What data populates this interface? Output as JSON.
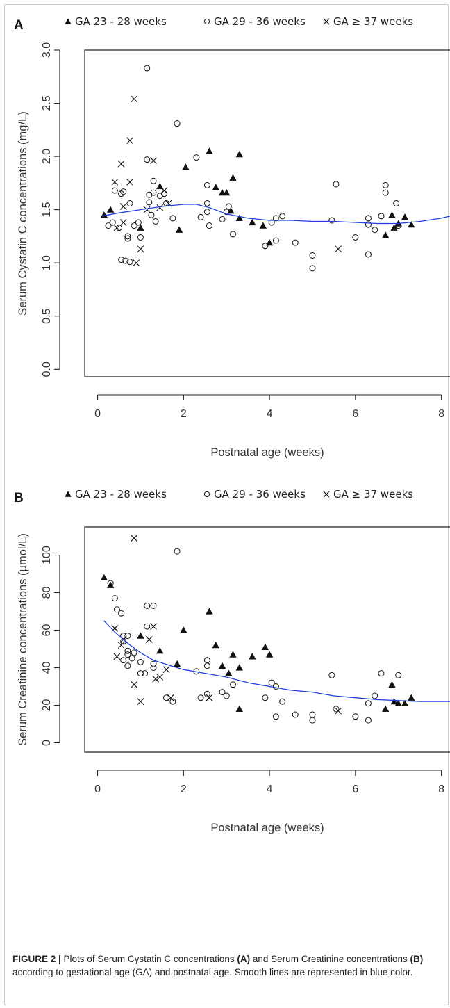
{
  "figure": {
    "caption_label": "FIGURE 2 |",
    "caption_text_1": " Plots of Serum Cystatin C concentrations ",
    "caption_bold_a": "(A)",
    "caption_text_2": " and Serum Creatinine concentrations ",
    "caption_bold_b": "(B)",
    "caption_text_3": " according to gestational age (GA) and postnatal age. Smooth lines are represented in blue color.",
    "smooth_color": "#1f3fe0",
    "marker_color": "#111111"
  },
  "chart_data": [
    {
      "panel_label": "A",
      "type": "scatter",
      "xlabel": "Postnatal age (weeks)",
      "ylabel": "Serum Cystatin C concentrations (mg/L)",
      "xlim": [
        -0.3,
        8.2
      ],
      "ylim": [
        -0.07,
        3.0
      ],
      "xticks": [
        "0",
        "2",
        "4",
        "6",
        "8"
      ],
      "yticks": [
        "0.0",
        "0.5",
        "1.0",
        "1.5",
        "2.0",
        "2.5",
        "3.0"
      ],
      "legend": [
        "GA 23 - 28 weeks",
        "GA 29 - 36 weeks",
        "GA ≥ 37 weeks"
      ],
      "series": [
        {
          "name": "GA 23 - 28 weeks",
          "marker": "triangle",
          "points": [
            [
              0.15,
              1.45
            ],
            [
              0.3,
              1.5
            ],
            [
              1.0,
              1.33
            ],
            [
              1.45,
              1.72
            ],
            [
              1.9,
              1.31
            ],
            [
              2.05,
              1.9
            ],
            [
              2.6,
              2.05
            ],
            [
              2.75,
              1.71
            ],
            [
              2.9,
              1.66
            ],
            [
              3.0,
              1.66
            ],
            [
              3.1,
              1.49
            ],
            [
              3.15,
              1.8
            ],
            [
              3.3,
              2.02
            ],
            [
              3.3,
              1.42
            ],
            [
              3.6,
              1.38
            ],
            [
              3.85,
              1.35
            ],
            [
              4.0,
              1.19
            ],
            [
              6.7,
              1.26
            ],
            [
              6.85,
              1.45
            ],
            [
              6.9,
              1.33
            ],
            [
              7.0,
              1.37
            ],
            [
              7.15,
              1.43
            ],
            [
              7.3,
              1.36
            ]
          ]
        },
        {
          "name": "GA 29 - 36 weeks",
          "marker": "circle",
          "points": [
            [
              0.25,
              1.35
            ],
            [
              0.35,
              1.38
            ],
            [
              0.4,
              1.68
            ],
            [
              0.5,
              1.33
            ],
            [
              0.55,
              1.65
            ],
            [
              0.55,
              1.03
            ],
            [
              0.6,
              1.67
            ],
            [
              0.65,
              1.02
            ],
            [
              0.7,
              1.25
            ],
            [
              0.7,
              1.23
            ],
            [
              0.75,
              1.01
            ],
            [
              0.75,
              1.56
            ],
            [
              0.85,
              1.35
            ],
            [
              0.95,
              1.38
            ],
            [
              1.0,
              1.24
            ],
            [
              1.15,
              2.83
            ],
            [
              1.15,
              1.97
            ],
            [
              1.2,
              1.64
            ],
            [
              1.2,
              1.57
            ],
            [
              1.25,
              1.45
            ],
            [
              1.3,
              1.77
            ],
            [
              1.3,
              1.66
            ],
            [
              1.35,
              1.39
            ],
            [
              1.45,
              1.63
            ],
            [
              1.55,
              1.65
            ],
            [
              1.6,
              1.56
            ],
            [
              1.75,
              1.42
            ],
            [
              1.85,
              2.31
            ],
            [
              2.3,
              1.99
            ],
            [
              2.4,
              1.43
            ],
            [
              2.55,
              1.73
            ],
            [
              2.55,
              1.56
            ],
            [
              2.55,
              1.48
            ],
            [
              2.6,
              1.35
            ],
            [
              2.9,
              1.41
            ],
            [
              3.0,
              1.48
            ],
            [
              3.05,
              1.53
            ],
            [
              3.15,
              1.27
            ],
            [
              3.9,
              1.16
            ],
            [
              4.05,
              1.38
            ],
            [
              4.15,
              1.21
            ],
            [
              4.15,
              1.42
            ],
            [
              4.3,
              1.44
            ],
            [
              4.6,
              1.19
            ],
            [
              5.0,
              1.07
            ],
            [
              5.0,
              0.95
            ],
            [
              5.45,
              1.4
            ],
            [
              5.55,
              1.74
            ],
            [
              6.0,
              1.24
            ],
            [
              6.3,
              1.42
            ],
            [
              6.3,
              1.36
            ],
            [
              6.3,
              1.08
            ],
            [
              6.45,
              1.31
            ],
            [
              6.6,
              1.44
            ],
            [
              6.7,
              1.73
            ],
            [
              6.7,
              1.66
            ],
            [
              6.95,
              1.56
            ],
            [
              7.0,
              1.35
            ]
          ]
        },
        {
          "name": "GA ≥ 37 weeks",
          "marker": "x",
          "points": [
            [
              0.4,
              1.76
            ],
            [
              0.45,
              1.33
            ],
            [
              0.55,
              1.93
            ],
            [
              0.6,
              1.53
            ],
            [
              0.6,
              1.38
            ],
            [
              0.75,
              2.15
            ],
            [
              0.75,
              1.76
            ],
            [
              0.85,
              2.54
            ],
            [
              0.9,
              1.0
            ],
            [
              1.0,
              1.13
            ],
            [
              1.15,
              1.5
            ],
            [
              1.3,
              1.96
            ],
            [
              1.45,
              1.52
            ],
            [
              1.55,
              1.68
            ],
            [
              1.65,
              1.56
            ],
            [
              5.6,
              1.13
            ]
          ]
        }
      ],
      "smooth": {
        "x": [
          0.1,
          0.5,
          1.0,
          1.5,
          2.0,
          2.3,
          2.6,
          3.0,
          3.5,
          4.0,
          4.5,
          5.0,
          5.5,
          6.0,
          6.5,
          7.0,
          7.5,
          8.0,
          8.2
        ],
        "y": [
          1.44,
          1.47,
          1.5,
          1.53,
          1.55,
          1.55,
          1.52,
          1.46,
          1.42,
          1.4,
          1.4,
          1.39,
          1.39,
          1.38,
          1.37,
          1.37,
          1.39,
          1.42,
          1.44
        ]
      }
    },
    {
      "panel_label": "B",
      "type": "scatter",
      "xlabel": "Postnatal age (weeks)",
      "ylabel": "Serum Creatinine concentrations (µmol/L)",
      "xlim": [
        -0.3,
        8.2
      ],
      "ylim": [
        -5,
        115
      ],
      "xticks": [
        "0",
        "2",
        "4",
        "6",
        "8"
      ],
      "yticks": [
        "0",
        "20",
        "40",
        "60",
        "80",
        "100"
      ],
      "legend": [
        "GA 23 - 28 weeks",
        "GA 29 - 36 weeks",
        "GA ≥ 37 weeks"
      ],
      "series": [
        {
          "name": "GA 23 - 28 weeks",
          "marker": "triangle",
          "points": [
            [
              0.15,
              88
            ],
            [
              0.3,
              84
            ],
            [
              1.0,
              57
            ],
            [
              1.45,
              49
            ],
            [
              1.85,
              42
            ],
            [
              2.0,
              60
            ],
            [
              2.6,
              70
            ],
            [
              2.75,
              52
            ],
            [
              2.9,
              41
            ],
            [
              3.05,
              37
            ],
            [
              3.15,
              47
            ],
            [
              3.3,
              40
            ],
            [
              3.3,
              18
            ],
            [
              3.6,
              46
            ],
            [
              3.9,
              51
            ],
            [
              4.0,
              47
            ],
            [
              6.7,
              18
            ],
            [
              6.85,
              31
            ],
            [
              6.9,
              22
            ],
            [
              7.0,
              21
            ],
            [
              7.15,
              21
            ],
            [
              7.3,
              24
            ]
          ]
        },
        {
          "name": "GA 29 - 36 weeks",
          "marker": "circle",
          "points": [
            [
              0.3,
              85
            ],
            [
              0.4,
              77
            ],
            [
              0.45,
              71
            ],
            [
              0.55,
              69
            ],
            [
              0.6,
              57
            ],
            [
              0.6,
              54
            ],
            [
              0.6,
              44
            ],
            [
              0.7,
              57
            ],
            [
              0.7,
              49
            ],
            [
              0.7,
              47
            ],
            [
              0.7,
              41
            ],
            [
              0.8,
              45
            ],
            [
              0.85,
              48
            ],
            [
              1.0,
              43
            ],
            [
              1.0,
              37
            ],
            [
              1.1,
              37
            ],
            [
              1.15,
              73
            ],
            [
              1.15,
              62
            ],
            [
              1.3,
              73
            ],
            [
              1.3,
              42
            ],
            [
              1.3,
              40
            ],
            [
              1.6,
              24
            ],
            [
              1.75,
              22
            ],
            [
              1.85,
              102
            ],
            [
              2.3,
              38
            ],
            [
              2.4,
              24
            ],
            [
              2.55,
              44
            ],
            [
              2.55,
              41
            ],
            [
              2.55,
              26
            ],
            [
              2.9,
              27
            ],
            [
              3.0,
              25
            ],
            [
              3.15,
              31
            ],
            [
              3.9,
              24
            ],
            [
              4.05,
              32
            ],
            [
              4.15,
              14
            ],
            [
              4.15,
              30
            ],
            [
              4.3,
              22
            ],
            [
              4.6,
              15
            ],
            [
              5.0,
              15
            ],
            [
              5.0,
              12
            ],
            [
              5.45,
              36
            ],
            [
              5.55,
              18
            ],
            [
              6.0,
              14
            ],
            [
              6.3,
              21
            ],
            [
              6.3,
              12
            ],
            [
              6.45,
              25
            ],
            [
              6.6,
              37
            ],
            [
              7.0,
              36
            ]
          ]
        },
        {
          "name": "GA ≥ 37 weeks",
          "marker": "x",
          "points": [
            [
              0.4,
              61
            ],
            [
              0.45,
              46
            ],
            [
              0.55,
              52
            ],
            [
              0.6,
              55
            ],
            [
              0.85,
              109
            ],
            [
              0.85,
              31
            ],
            [
              1.0,
              22
            ],
            [
              1.2,
              55
            ],
            [
              1.3,
              62
            ],
            [
              1.35,
              34
            ],
            [
              1.45,
              35
            ],
            [
              1.6,
              39
            ],
            [
              1.7,
              24
            ],
            [
              2.6,
              24
            ],
            [
              5.6,
              17
            ]
          ]
        }
      ],
      "smooth": {
        "x": [
          0.15,
          0.4,
          0.7,
          1.0,
          1.3,
          1.7,
          2.0,
          2.5,
          3.0,
          3.5,
          4.0,
          4.5,
          5.0,
          5.5,
          6.0,
          6.5,
          7.0,
          7.5,
          8.2
        ],
        "y": [
          65,
          59,
          53,
          48,
          44,
          41,
          39,
          37,
          35,
          32,
          30,
          28,
          27,
          25,
          24,
          23,
          22.5,
          22,
          22
        ]
      }
    }
  ]
}
